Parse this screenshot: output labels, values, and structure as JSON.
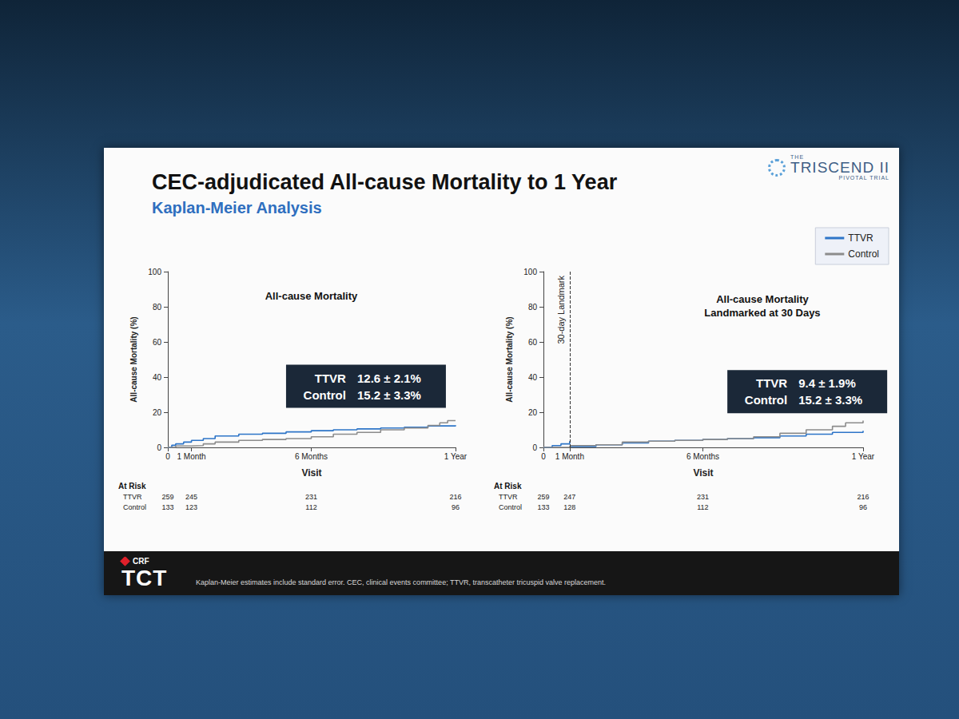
{
  "slide": {
    "title": "CEC-adjudicated All-cause Mortality to 1 Year",
    "subtitle": "Kaplan-Meier Analysis",
    "logo": {
      "pre": "THE",
      "name": "TRISCEND II",
      "post": "PIVOTAL TRIAL"
    },
    "footer": {
      "org": "CRF",
      "brand": "TCT",
      "note": "Kaplan-Meier estimates include standard error. CEC, clinical events committee; TTVR, transcatheter tricuspid valve replacement."
    }
  },
  "chart_data": [
    {
      "type": "line",
      "title": "All-cause Mortality",
      "x_label": "Visit",
      "y_label": "All-cause Mortality (%)",
      "xlim": [
        0,
        365
      ],
      "xticks": [
        0,
        {
          "value": 30,
          "label": "1 Month"
        },
        {
          "value": 182,
          "label": "6 Months"
        },
        {
          "value": 365,
          "label": "1 Year"
        }
      ],
      "ylim": [
        0,
        100
      ],
      "yticks": [
        0,
        20,
        40,
        60,
        80,
        100
      ],
      "grid": false,
      "series": [
        {
          "name": "TTVR",
          "color": "#2e75c8",
          "line_style": "solid",
          "x": [
            0,
            5,
            10,
            20,
            30,
            45,
            60,
            90,
            120,
            150,
            182,
            210,
            240,
            270,
            300,
            330,
            365
          ],
          "values": [
            0,
            1.2,
            2,
            3,
            4,
            5,
            6.5,
            7.5,
            8,
            8.8,
            9.5,
            10,
            10.5,
            11,
            11.5,
            12.2,
            12.6
          ],
          "at_risk": [
            259,
            245,
            231,
            216
          ]
        },
        {
          "name": "Control",
          "color": "#8c8c8c",
          "line_style": "solid",
          "x": [
            0,
            10,
            30,
            45,
            60,
            90,
            120,
            150,
            182,
            210,
            240,
            270,
            300,
            330,
            345,
            355,
            365
          ],
          "values": [
            0,
            0.8,
            1,
            2,
            3,
            4,
            4.5,
            5,
            6,
            7.5,
            8.5,
            10,
            11,
            12.5,
            14,
            15.2,
            15.2
          ],
          "at_risk": [
            133,
            123,
            112,
            96
          ]
        }
      ],
      "estimates": [
        {
          "name": "TTVR",
          "label": "12.6 ± 2.1%"
        },
        {
          "name": "Control",
          "label": "15.2 ± 3.3%"
        }
      ],
      "at_risk": {
        "title": "At Risk",
        "x": [
          0,
          30,
          182,
          365
        ]
      }
    },
    {
      "type": "line",
      "title": "All-cause Mortality Landmarked at 30 Days",
      "x_label": "Visit",
      "y_label": "All-cause Mortality (%)",
      "xlim": [
        0,
        365
      ],
      "xticks": [
        0,
        {
          "value": 30,
          "label": "1 Month"
        },
        {
          "value": 182,
          "label": "6 Months"
        },
        {
          "value": 365,
          "label": "1 Year"
        }
      ],
      "ylim": [
        0,
        100
      ],
      "yticks": [
        0,
        20,
        40,
        60,
        80,
        100
      ],
      "grid": false,
      "legend": "top-right",
      "series": [
        {
          "name": "TTVR",
          "color": "#2e75c8",
          "line_style": "solid",
          "x": [
            0,
            10,
            20,
            30,
            30,
            31,
            60,
            90,
            120,
            150,
            182,
            210,
            240,
            270,
            300,
            330,
            365
          ],
          "values": [
            0,
            1,
            2,
            3.5,
            null,
            0.5,
            1.5,
            2.5,
            3.5,
            4,
            4.5,
            5,
            5.5,
            6.5,
            7.5,
            8.5,
            9.4
          ],
          "at_risk": [
            259,
            247,
            231,
            216
          ]
        },
        {
          "name": "Control",
          "color": "#8c8c8c",
          "line_style": "solid",
          "x": [
            0,
            30,
            31,
            60,
            90,
            120,
            150,
            182,
            210,
            240,
            270,
            300,
            330,
            345,
            365
          ],
          "values": [
            0,
            0.5,
            1,
            1.5,
            3,
            3.5,
            4,
            4.5,
            5,
            6,
            8,
            10,
            12,
            14,
            15.2
          ],
          "at_risk": [
            133,
            128,
            112,
            96
          ]
        }
      ],
      "estimates": [
        {
          "name": "TTVR",
          "label": "9.4 ± 1.9%"
        },
        {
          "name": "Control",
          "label": "15.2 ± 3.3%"
        }
      ],
      "annotations": [
        {
          "text": "30-day Landmark",
          "x": 30,
          "line_style": "dashed"
        }
      ],
      "at_risk": {
        "title": "At Risk",
        "x": [
          0,
          30,
          182,
          365
        ]
      }
    }
  ]
}
